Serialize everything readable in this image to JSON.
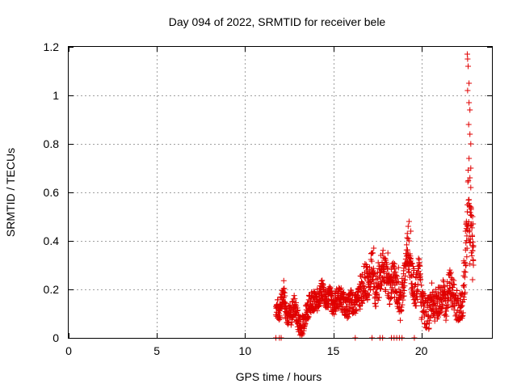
{
  "chart_data": {
    "type": "scatter",
    "title": "Day 094 of 2022, SRMTID for receiver bele",
    "xlabel": "GPS time / hours",
    "ylabel": "SRMTID / TECUs",
    "xlim": [
      0,
      24
    ],
    "ylim": [
      0,
      1.2
    ],
    "xticks": [
      0,
      5,
      10,
      15,
      20
    ],
    "xtick_labels": [
      "0",
      "5",
      "10",
      "15",
      "20"
    ],
    "yticks": [
      0,
      0.2,
      0.4,
      0.6,
      0.8,
      1,
      1.2
    ],
    "ytick_labels": [
      "0",
      "0.2",
      "0.4",
      "0.6",
      "0.8",
      "1",
      "1.2"
    ],
    "grid": true,
    "marker": "+",
    "colors": {
      "series": "#e00000",
      "grid": "#a0a0a0",
      "axes": "#000000"
    },
    "zero_flag_x": [
      11.75,
      11.95,
      12.05,
      16.25,
      17.2,
      17.65,
      17.8,
      18.3,
      18.45,
      18.6,
      18.75,
      18.9,
      19.6
    ],
    "anchors": [
      [
        11.75,
        0.13
      ],
      [
        11.9,
        0.11
      ],
      [
        12.0,
        0.12
      ],
      [
        12.1,
        0.16
      ],
      [
        12.2,
        0.2
      ],
      [
        12.3,
        0.12
      ],
      [
        12.4,
        0.1
      ],
      [
        12.6,
        0.09
      ],
      [
        12.8,
        0.14
      ],
      [
        13.0,
        0.07
      ],
      [
        13.2,
        0.04
      ],
      [
        13.4,
        0.09
      ],
      [
        13.6,
        0.13
      ],
      [
        13.8,
        0.16
      ],
      [
        14.0,
        0.14
      ],
      [
        14.2,
        0.17
      ],
      [
        14.4,
        0.2
      ],
      [
        14.6,
        0.15
      ],
      [
        14.8,
        0.18
      ],
      [
        15.0,
        0.13
      ],
      [
        15.2,
        0.16
      ],
      [
        15.4,
        0.17
      ],
      [
        15.6,
        0.14
      ],
      [
        15.8,
        0.12
      ],
      [
        16.0,
        0.16
      ],
      [
        16.2,
        0.13
      ],
      [
        16.4,
        0.16
      ],
      [
        16.6,
        0.2
      ],
      [
        16.8,
        0.24
      ],
      [
        17.0,
        0.22
      ],
      [
        17.2,
        0.3
      ],
      [
        17.4,
        0.18
      ],
      [
        17.6,
        0.22
      ],
      [
        17.8,
        0.3
      ],
      [
        18.0,
        0.25
      ],
      [
        18.2,
        0.2
      ],
      [
        18.4,
        0.26
      ],
      [
        18.6,
        0.2
      ],
      [
        18.8,
        0.14
      ],
      [
        19.0,
        0.22
      ],
      [
        19.2,
        0.38
      ],
      [
        19.35,
        0.3
      ],
      [
        19.5,
        0.24
      ],
      [
        19.7,
        0.18
      ],
      [
        19.9,
        0.3
      ],
      [
        20.0,
        0.14
      ],
      [
        20.2,
        0.11
      ],
      [
        20.4,
        0.1
      ],
      [
        20.6,
        0.16
      ],
      [
        20.8,
        0.13
      ],
      [
        21.0,
        0.15
      ],
      [
        21.2,
        0.18
      ],
      [
        21.4,
        0.14
      ],
      [
        21.6,
        0.22
      ],
      [
        21.8,
        0.18
      ],
      [
        22.0,
        0.14
      ],
      [
        22.2,
        0.12
      ],
      [
        22.35,
        0.15
      ],
      [
        22.45,
        0.25
      ],
      [
        22.55,
        0.4
      ],
      [
        22.65,
        0.6
      ],
      [
        22.75,
        0.42
      ],
      [
        22.85,
        0.45
      ],
      [
        22.95,
        0.4
      ]
    ],
    "spikes": [
      [
        22.6,
        1.17
      ],
      [
        22.62,
        1.15
      ],
      [
        22.65,
        1.12
      ],
      [
        22.7,
        1.05
      ],
      [
        22.62,
        1.02
      ],
      [
        22.7,
        0.97
      ],
      [
        22.75,
        0.94
      ],
      [
        22.68,
        0.88
      ],
      [
        22.75,
        0.84
      ],
      [
        22.8,
        0.8
      ],
      [
        22.7,
        0.74
      ],
      [
        22.8,
        0.7
      ],
      [
        22.75,
        0.66
      ],
      [
        22.8,
        0.62
      ],
      [
        22.7,
        0.57
      ],
      [
        22.8,
        0.54
      ],
      [
        22.6,
        0.52
      ],
      [
        22.9,
        0.5
      ],
      [
        22.85,
        0.47
      ],
      [
        22.95,
        0.38
      ],
      [
        22.9,
        0.36
      ],
      [
        22.95,
        0.3
      ],
      [
        22.9,
        0.24
      ],
      [
        22.5,
        0.44
      ],
      [
        22.55,
        0.48
      ],
      [
        19.3,
        0.48
      ],
      [
        19.25,
        0.46
      ],
      [
        19.4,
        0.44
      ],
      [
        19.3,
        0.4
      ],
      [
        17.3,
        0.37
      ],
      [
        17.25,
        0.35
      ],
      [
        18.1,
        0.35
      ],
      [
        17.7,
        0.34
      ],
      [
        17.55,
        0.31
      ],
      [
        18.7,
        0.29
      ]
    ]
  }
}
